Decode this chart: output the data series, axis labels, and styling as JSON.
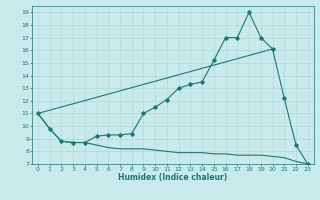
{
  "title": "",
  "xlabel": "Humidex (Indice chaleur)",
  "background_color": "#c8eaea",
  "line_color": "#1a7a6e",
  "grid_color": "#aad4d4",
  "xlim": [
    -0.5,
    23.5
  ],
  "ylim": [
    7,
    19.5
  ],
  "xticks": [
    0,
    1,
    2,
    3,
    4,
    5,
    6,
    7,
    8,
    9,
    10,
    11,
    12,
    13,
    14,
    15,
    16,
    17,
    18,
    19,
    20,
    21,
    22,
    23
  ],
  "yticks": [
    7,
    8,
    9,
    10,
    11,
    12,
    13,
    14,
    15,
    16,
    17,
    18,
    19
  ],
  "line1_x": [
    0,
    1,
    2,
    3,
    4,
    5,
    6,
    7,
    8,
    9,
    10,
    11,
    12,
    13,
    14,
    15,
    16,
    17,
    18,
    19,
    20,
    21,
    22,
    23
  ],
  "line1_y": [
    11.0,
    9.8,
    8.8,
    8.7,
    8.7,
    9.2,
    9.3,
    9.3,
    9.4,
    11.0,
    11.5,
    12.1,
    13.0,
    13.3,
    13.5,
    15.2,
    17.0,
    17.0,
    19.0,
    17.0,
    16.1,
    12.2,
    8.5,
    7.0
  ],
  "line2_x": [
    0,
    1,
    2,
    3,
    4,
    5,
    6,
    7,
    8,
    9,
    10,
    11,
    12,
    13,
    14,
    15,
    16,
    17,
    18,
    19,
    20,
    21,
    22,
    23
  ],
  "line2_y": [
    11.0,
    9.8,
    8.8,
    8.7,
    8.7,
    8.5,
    8.3,
    8.2,
    8.2,
    8.2,
    8.1,
    8.0,
    7.9,
    7.9,
    7.9,
    7.8,
    7.8,
    7.7,
    7.7,
    7.7,
    7.6,
    7.5,
    7.2,
    7.0
  ],
  "line3_x": [
    0,
    20
  ],
  "line3_y": [
    11.0,
    16.1
  ]
}
